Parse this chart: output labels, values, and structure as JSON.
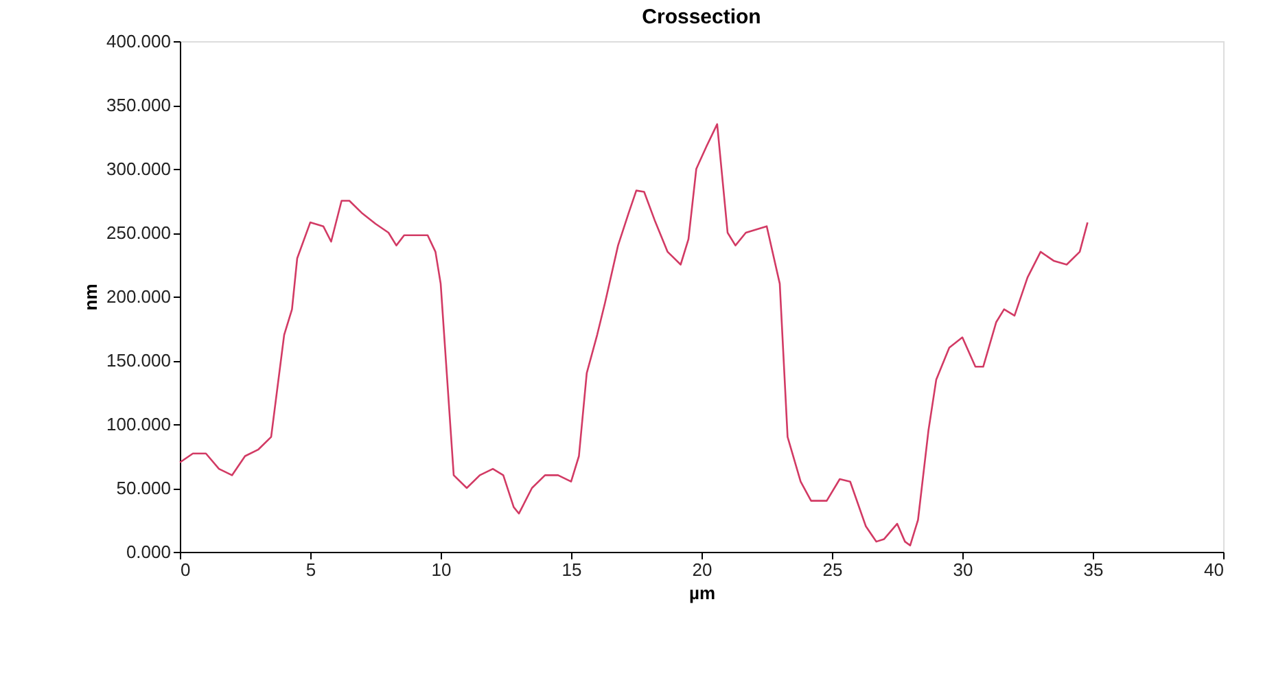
{
  "chart_data": {
    "type": "line",
    "title": "Crossection",
    "xlabel": "µm",
    "ylabel": "nm",
    "grid": false,
    "marker": "none",
    "line_style": "solid",
    "xlim": [
      0,
      40
    ],
    "xticks": [
      0,
      5,
      10,
      15,
      20,
      25,
      30,
      35,
      40
    ],
    "ylim": [
      0,
      400
    ],
    "yticks": [
      {
        "value": 0,
        "label": "0.000"
      },
      {
        "value": 50,
        "label": "50.000"
      },
      {
        "value": 100,
        "label": "100.000"
      },
      {
        "value": 150,
        "label": "150.000"
      },
      {
        "value": 200,
        "label": "200.000"
      },
      {
        "value": 250,
        "label": "250.000"
      },
      {
        "value": 300,
        "label": "300.000"
      },
      {
        "value": 350,
        "label": "350.000"
      },
      {
        "value": 400,
        "label": "400.000"
      }
    ],
    "series": [
      {
        "color": "#d23a64",
        "x": [
          0,
          0.5,
          1,
          1.5,
          2,
          2.5,
          3,
          3.5,
          4,
          4.3,
          4.5,
          5,
          5.5,
          5.8,
          6.2,
          6.5,
          7,
          7.5,
          8,
          8.3,
          8.6,
          9.5,
          9.8,
          10,
          10.2,
          10.5,
          11,
          11.5,
          12,
          12.4,
          12.8,
          13,
          13.5,
          14,
          14.5,
          15,
          15.3,
          15.6,
          16,
          16.3,
          16.8,
          17.2,
          17.5,
          17.8,
          18.2,
          18.7,
          19.2,
          19.5,
          19.8,
          20.2,
          20.6,
          21,
          21.3,
          21.7,
          22.5,
          23,
          23.3,
          23.8,
          24.2,
          24.8,
          25.3,
          25.7,
          26.3,
          26.7,
          27,
          27.5,
          27.8,
          28,
          28.3,
          28.7,
          29,
          29.5,
          30,
          30.5,
          30.8,
          31.3,
          31.6,
          32,
          32.5,
          33,
          33.5,
          34,
          34.5,
          34.8
        ],
        "values": [
          70,
          77,
          77,
          65,
          60,
          75,
          80,
          90,
          170,
          190,
          230,
          258,
          255,
          243,
          275,
          275,
          265,
          257,
          250,
          240,
          248,
          248,
          235,
          210,
          150,
          60,
          50,
          60,
          65,
          60,
          35,
          30,
          50,
          60,
          60,
          55,
          75,
          140,
          170,
          195,
          240,
          265,
          283,
          282,
          260,
          235,
          225,
          245,
          300,
          318,
          335,
          250,
          240,
          250,
          255,
          210,
          90,
          55,
          40,
          40,
          57,
          55,
          20,
          8,
          10,
          22,
          8,
          5,
          25,
          95,
          135,
          160,
          168,
          145,
          145,
          180,
          190,
          185,
          215,
          235,
          228,
          225,
          235,
          258
        ]
      }
    ]
  }
}
